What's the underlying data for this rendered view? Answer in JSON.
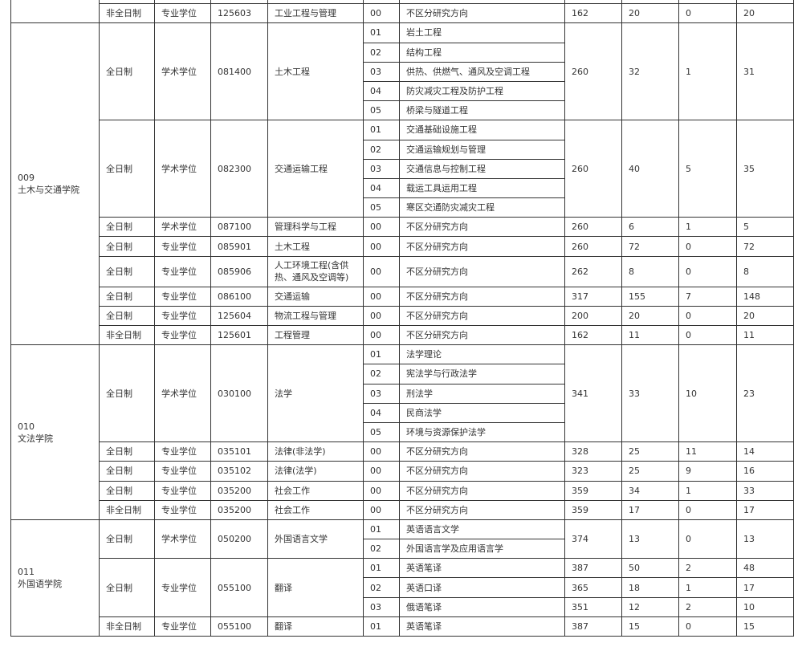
{
  "colleges": [
    {
      "code": "",
      "name": "",
      "programs": [
        {
          "mode": "非全日制",
          "type": "专业学位",
          "code": "125603",
          "name": "工业工程与管理",
          "directions": [
            {
              "code": "00",
              "name": "不区分研究方向"
            }
          ],
          "score": "162",
          "plan": "20",
          "exempt": "0",
          "exam": "20"
        }
      ]
    },
    {
      "code": "009",
      "name": "土木与交通学院",
      "programs": [
        {
          "mode": "全日制",
          "type": "学术学位",
          "code": "081400",
          "name": "土木工程",
          "directions": [
            {
              "code": "01",
              "name": "岩土工程"
            },
            {
              "code": "02",
              "name": "结构工程"
            },
            {
              "code": "03",
              "name": "供热、供燃气、通风及空调工程"
            },
            {
              "code": "04",
              "name": "防灾减灾工程及防护工程"
            },
            {
              "code": "05",
              "name": "桥梁与隧道工程"
            }
          ],
          "score": "260",
          "plan": "32",
          "exempt": "1",
          "exam": "31"
        },
        {
          "mode": "全日制",
          "type": "学术学位",
          "code": "082300",
          "name": "交通运输工程",
          "directions": [
            {
              "code": "01",
              "name": "交通基础设施工程"
            },
            {
              "code": "02",
              "name": "交通运输规划与管理"
            },
            {
              "code": "03",
              "name": "交通信息与控制工程"
            },
            {
              "code": "04",
              "name": "载运工具运用工程"
            },
            {
              "code": "05",
              "name": "寒区交通防灾减灾工程"
            }
          ],
          "score": "260",
          "plan": "40",
          "exempt": "5",
          "exam": "35"
        },
        {
          "mode": "全日制",
          "type": "学术学位",
          "code": "087100",
          "name": "管理科学与工程",
          "directions": [
            {
              "code": "00",
              "name": "不区分研究方向"
            }
          ],
          "score": "260",
          "plan": "6",
          "exempt": "1",
          "exam": "5"
        },
        {
          "mode": "全日制",
          "type": "专业学位",
          "code": "085901",
          "name": "土木工程",
          "directions": [
            {
              "code": "00",
              "name": "不区分研究方向"
            }
          ],
          "score": "260",
          "plan": "72",
          "exempt": "0",
          "exam": "72"
        },
        {
          "mode": "全日制",
          "type": "专业学位",
          "code": "085906",
          "name": "人工环境工程(含供热、通风及空调等)",
          "tall": true,
          "directions": [
            {
              "code": "00",
              "name": "不区分研究方向"
            }
          ],
          "score": "262",
          "plan": "8",
          "exempt": "0",
          "exam": "8"
        },
        {
          "mode": "全日制",
          "type": "专业学位",
          "code": "086100",
          "name": "交通运输",
          "directions": [
            {
              "code": "00",
              "name": "不区分研究方向"
            }
          ],
          "score": "317",
          "plan": "155",
          "exempt": "7",
          "exam": "148"
        },
        {
          "mode": "全日制",
          "type": "专业学位",
          "code": "125604",
          "name": "物流工程与管理",
          "directions": [
            {
              "code": "00",
              "name": "不区分研究方向"
            }
          ],
          "score": "200",
          "plan": "20",
          "exempt": "0",
          "exam": "20"
        },
        {
          "mode": "非全日制",
          "type": "专业学位",
          "code": "125601",
          "name": "工程管理",
          "directions": [
            {
              "code": "00",
              "name": "不区分研究方向"
            }
          ],
          "score": "162",
          "plan": "11",
          "exempt": "0",
          "exam": "11"
        }
      ]
    },
    {
      "code": "010",
      "name": "文法学院",
      "programs": [
        {
          "mode": "全日制",
          "type": "学术学位",
          "code": "030100",
          "name": "法学",
          "directions": [
            {
              "code": "01",
              "name": "法学理论"
            },
            {
              "code": "02",
              "name": "宪法学与行政法学"
            },
            {
              "code": "03",
              "name": "刑法学"
            },
            {
              "code": "04",
              "name": "民商法学"
            },
            {
              "code": "05",
              "name": "环境与资源保护法学"
            }
          ],
          "score": "341",
          "plan": "33",
          "exempt": "10",
          "exam": "23"
        },
        {
          "mode": "全日制",
          "type": "专业学位",
          "code": "035101",
          "name": "法律(非法学)",
          "directions": [
            {
              "code": "00",
              "name": "不区分研究方向"
            }
          ],
          "score": "328",
          "plan": "25",
          "exempt": "11",
          "exam": "14"
        },
        {
          "mode": "全日制",
          "type": "专业学位",
          "code": "035102",
          "name": "法律(法学)",
          "directions": [
            {
              "code": "00",
              "name": "不区分研究方向"
            }
          ],
          "score": "323",
          "plan": "25",
          "exempt": "9",
          "exam": "16"
        },
        {
          "mode": "全日制",
          "type": "专业学位",
          "code": "035200",
          "name": "社会工作",
          "directions": [
            {
              "code": "00",
              "name": "不区分研究方向"
            }
          ],
          "score": "359",
          "plan": "34",
          "exempt": "1",
          "exam": "33"
        },
        {
          "mode": "非全日制",
          "type": "专业学位",
          "code": "035200",
          "name": "社会工作",
          "directions": [
            {
              "code": "00",
              "name": "不区分研究方向"
            }
          ],
          "score": "359",
          "plan": "17",
          "exempt": "0",
          "exam": "17"
        }
      ]
    },
    {
      "code": "011",
      "name": "外国语学院",
      "programs": [
        {
          "mode": "全日制",
          "type": "学术学位",
          "code": "050200",
          "name": "外国语言文学",
          "directions": [
            {
              "code": "01",
              "name": "英语语言文学"
            },
            {
              "code": "02",
              "name": "外国语言学及应用语言学"
            }
          ],
          "score": "374",
          "plan": "13",
          "exempt": "0",
          "exam": "13"
        },
        {
          "mode": "全日制",
          "type": "专业学位",
          "code": "055100",
          "name": "翻译",
          "directions": [
            {
              "code": "01",
              "name": "英语笔译",
              "score": "387",
              "plan": "50",
              "exempt": "2",
              "exam": "48"
            },
            {
              "code": "02",
              "name": "英语口译",
              "score": "365",
              "plan": "18",
              "exempt": "1",
              "exam": "17"
            },
            {
              "code": "03",
              "name": "俄语笔译",
              "score": "351",
              "plan": "12",
              "exempt": "2",
              "exam": "10"
            }
          ]
        },
        {
          "mode": "非全日制",
          "type": "专业学位",
          "code": "055100",
          "name": "翻译",
          "directions": [
            {
              "code": "01",
              "name": "英语笔译"
            }
          ],
          "score": "387",
          "plan": "15",
          "exempt": "0",
          "exam": "15"
        }
      ]
    }
  ]
}
